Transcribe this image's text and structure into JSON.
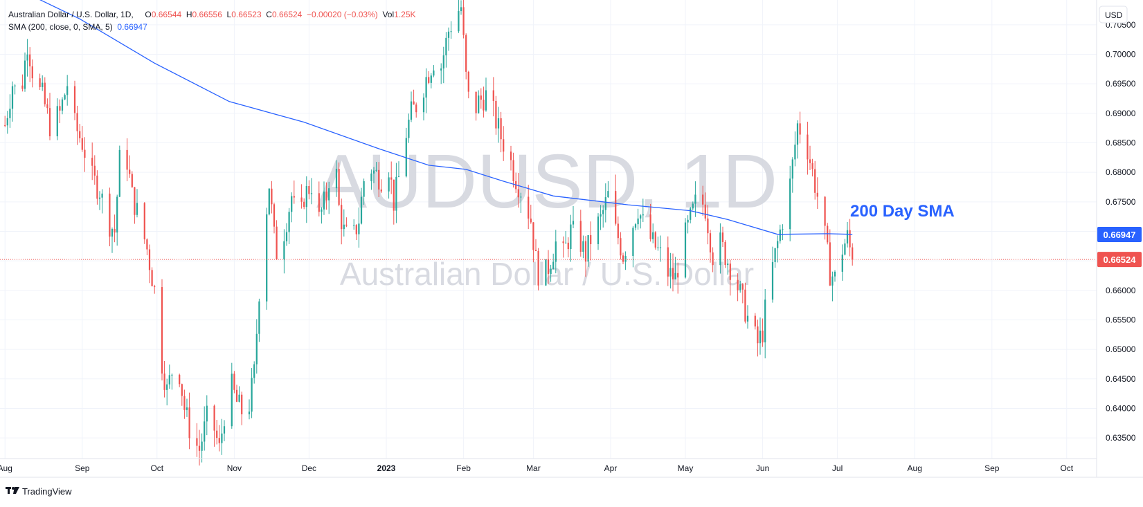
{
  "header": {
    "symbol_label": "Australian Dollar / U.S. Dollar, 1D,",
    "open_key": "O",
    "open_val": "0.66544",
    "high_key": "H",
    "high_val": "0.66556",
    "low_key": "L",
    "low_val": "0.66523",
    "close_key": "C",
    "close_val": "0.66524",
    "change": "−0.00020 (−0.03%)",
    "vol_key": "Vol",
    "vol_val": "1.25K",
    "sma_label": "SMA (200, close, 0, SMA, 5)",
    "sma_val": "0.66947"
  },
  "watermark": {
    "ticker": "AUDUSD, 1D",
    "name": "Australian Dollar / U.S. Dollar"
  },
  "annotation": {
    "text": "200 Day SMA"
  },
  "brand": {
    "text": "TradingView"
  },
  "colors": {
    "up": "#26a69a",
    "down": "#ef5350",
    "sma": "#2962ff",
    "grid": "#f0f3fa",
    "axis_text": "#131722",
    "watermark": "#d1d4dc"
  },
  "chart_data": {
    "type": "candlestick",
    "currency_label": "USD",
    "y_ticks": [
      "0.70500",
      "0.70000",
      "0.69500",
      "0.69000",
      "0.68500",
      "0.68000",
      "0.67500",
      "0.67000",
      "0.66500",
      "0.66000",
      "0.65500",
      "0.65000",
      "0.64500",
      "0.64000",
      "0.63500"
    ],
    "ylim": [
      0.6315,
      0.7092
    ],
    "x_ticks": [
      "Aug",
      "Sep",
      "Oct",
      "Nov",
      "Dec",
      "2023",
      "Feb",
      "Mar",
      "Apr",
      "May",
      "Jun",
      "Jul",
      "Aug",
      "Sep",
      "Oct"
    ],
    "x_tick_days": [
      0,
      31,
      61,
      92,
      122,
      153,
      184,
      212,
      243,
      273,
      304,
      334,
      365,
      396,
      426
    ],
    "xlim_days": [
      -2,
      438
    ],
    "sma_last_label": "0.66947",
    "price_last_label": "0.66524",
    "last_price": 0.66524,
    "sma_last": 0.66947,
    "sma": [
      [
        -2,
        0.7125
      ],
      [
        30,
        0.706
      ],
      [
        60,
        0.6985
      ],
      [
        90,
        0.692
      ],
      [
        120,
        0.6885
      ],
      [
        150,
        0.684
      ],
      [
        170,
        0.6812
      ],
      [
        185,
        0.6805
      ],
      [
        200,
        0.6785
      ],
      [
        220,
        0.676
      ],
      [
        250,
        0.6745
      ],
      [
        275,
        0.6735
      ],
      [
        290,
        0.672
      ],
      [
        310,
        0.6695
      ],
      [
        330,
        0.6696
      ],
      [
        340,
        0.6695
      ]
    ],
    "price_path": [
      [
        0,
        0.688
      ],
      [
        3,
        0.695
      ],
      [
        6,
        0.692
      ],
      [
        9,
        0.702
      ],
      [
        12,
        0.695
      ],
      [
        15,
        0.693
      ],
      [
        18,
        0.688
      ],
      [
        22,
        0.69
      ],
      [
        25,
        0.695
      ],
      [
        28,
        0.688
      ],
      [
        31,
        0.685
      ],
      [
        35,
        0.679
      ],
      [
        38,
        0.677
      ],
      [
        41,
        0.672
      ],
      [
        44,
        0.67
      ],
      [
        46,
        0.682
      ],
      [
        48,
        0.685
      ],
      [
        51,
        0.676
      ],
      [
        54,
        0.672
      ],
      [
        57,
        0.667
      ],
      [
        60,
        0.66
      ],
      [
        62,
        0.65
      ],
      [
        65,
        0.643
      ],
      [
        68,
        0.648
      ],
      [
        70,
        0.646
      ],
      [
        72,
        0.64
      ],
      [
        75,
        0.635
      ],
      [
        78,
        0.633
      ],
      [
        82,
        0.64
      ],
      [
        86,
        0.633
      ],
      [
        90,
        0.645
      ],
      [
        93,
        0.641
      ],
      [
        97,
        0.638
      ],
      [
        100,
        0.646
      ],
      [
        102,
        0.66
      ],
      [
        104,
        0.67
      ],
      [
        106,
        0.678
      ],
      [
        108,
        0.669
      ],
      [
        110,
        0.664
      ],
      [
        112,
        0.67
      ],
      [
        115,
        0.676
      ],
      [
        118,
        0.67
      ],
      [
        120,
        0.676
      ],
      [
        123,
        0.678
      ],
      [
        126,
        0.672
      ],
      [
        129,
        0.676
      ],
      [
        132,
        0.685
      ],
      [
        134,
        0.674
      ],
      [
        136,
        0.67
      ],
      [
        139,
        0.668
      ],
      [
        142,
        0.672
      ],
      [
        145,
        0.682
      ],
      [
        148,
        0.68
      ],
      [
        151,
        0.679
      ],
      [
        154,
        0.681
      ],
      [
        156,
        0.675
      ],
      [
        158,
        0.679
      ],
      [
        160,
        0.685
      ],
      [
        163,
        0.69
      ],
      [
        166,
        0.692
      ],
      [
        169,
        0.696
      ],
      [
        172,
        0.699
      ],
      [
        175,
        0.698
      ],
      [
        178,
        0.704
      ],
      [
        181,
        0.707
      ],
      [
        183,
        0.708
      ],
      [
        185,
        0.696
      ],
      [
        187,
        0.689
      ],
      [
        190,
        0.692
      ],
      [
        193,
        0.693
      ],
      [
        196,
        0.69
      ],
      [
        199,
        0.686
      ],
      [
        202,
        0.683
      ],
      [
        205,
        0.679
      ],
      [
        208,
        0.676
      ],
      [
        211,
        0.672
      ],
      [
        213,
        0.665
      ],
      [
        215,
        0.661
      ],
      [
        218,
        0.664
      ],
      [
        221,
        0.668
      ],
      [
        224,
        0.666
      ],
      [
        227,
        0.67
      ],
      [
        230,
        0.669
      ],
      [
        233,
        0.666
      ],
      [
        236,
        0.67
      ],
      [
        239,
        0.672
      ],
      [
        242,
        0.676
      ],
      [
        244,
        0.671
      ],
      [
        246,
        0.669
      ],
      [
        248,
        0.666
      ],
      [
        251,
        0.67
      ],
      [
        254,
        0.674
      ],
      [
        257,
        0.67
      ],
      [
        260,
        0.668
      ],
      [
        263,
        0.666
      ],
      [
        266,
        0.663
      ],
      [
        269,
        0.662
      ],
      [
        272,
        0.668
      ],
      [
        275,
        0.672
      ],
      [
        278,
        0.676
      ],
      [
        281,
        0.674
      ],
      [
        284,
        0.666
      ],
      [
        287,
        0.668
      ],
      [
        290,
        0.665
      ],
      [
        293,
        0.662
      ],
      [
        296,
        0.658
      ],
      [
        299,
        0.654
      ],
      [
        302,
        0.651
      ],
      [
        304,
        0.653
      ],
      [
        306,
        0.66
      ],
      [
        309,
        0.666
      ],
      [
        312,
        0.672
      ],
      [
        315,
        0.678
      ],
      [
        318,
        0.688
      ],
      [
        321,
        0.686
      ],
      [
        324,
        0.68
      ],
      [
        327,
        0.674
      ],
      [
        329,
        0.669
      ],
      [
        331,
        0.663
      ],
      [
        333,
        0.662
      ],
      [
        336,
        0.667
      ],
      [
        338,
        0.669
      ],
      [
        340,
        0.6652
      ]
    ]
  }
}
